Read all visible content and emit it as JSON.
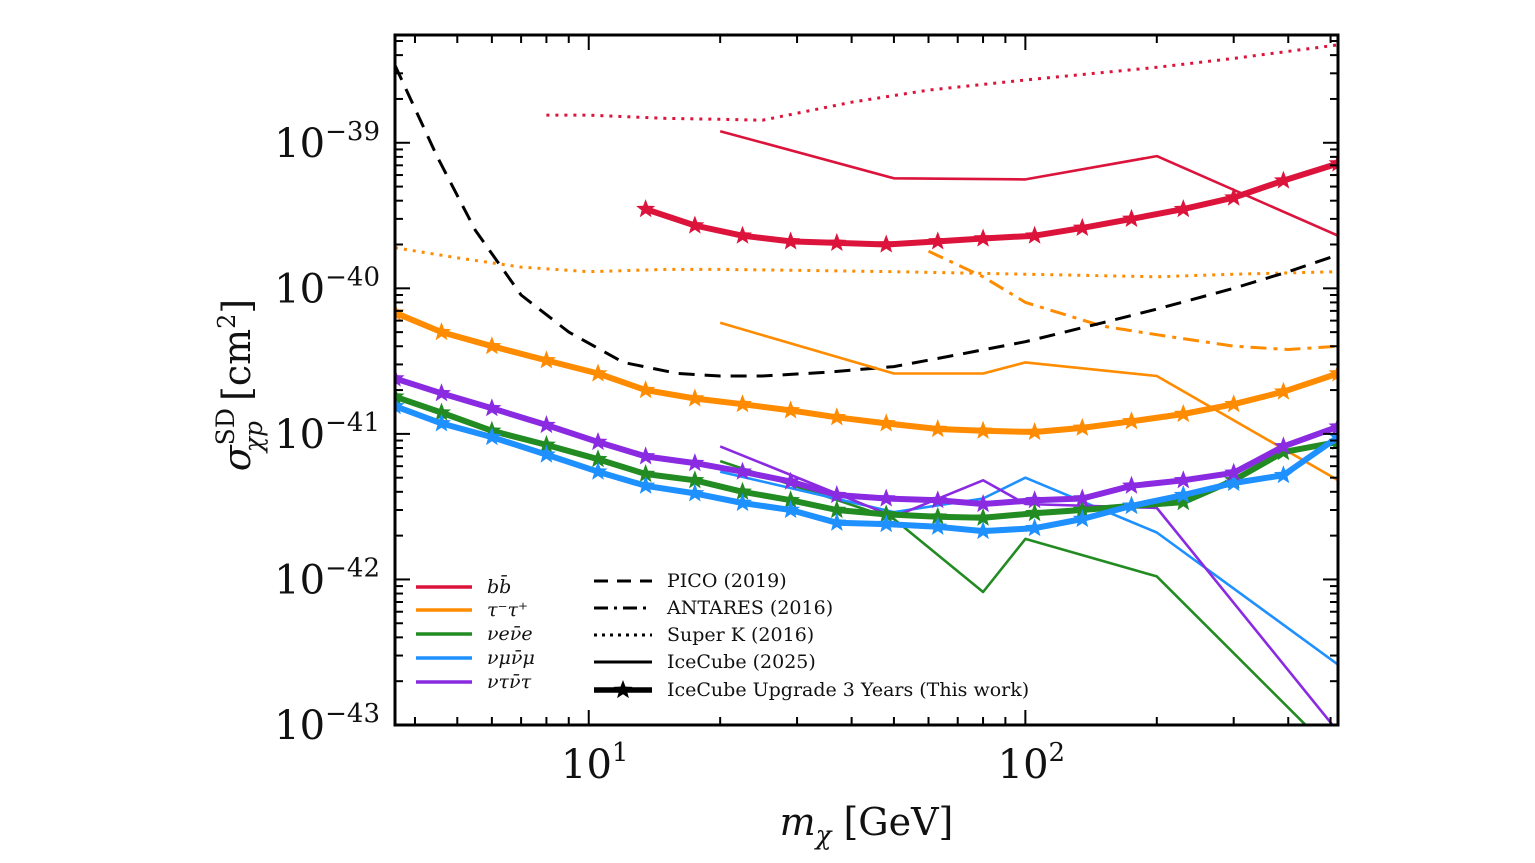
{
  "chart_data": {
    "type": "line",
    "xscale": "log",
    "yscale": "log",
    "xlim": [
      3.6,
      520
    ],
    "ylim": [
      1e-43,
      5.5e-39
    ],
    "x_ticks": [
      {
        "value": 10,
        "base": "10",
        "exp": "1"
      },
      {
        "value": 100,
        "base": "10",
        "exp": "2"
      }
    ],
    "y_ticks": [
      {
        "value": 1e-43,
        "base": "10",
        "exp": "−43"
      },
      {
        "value": 1e-42,
        "base": "10",
        "exp": "−42"
      },
      {
        "value": 1e-41,
        "base": "10",
        "exp": "−41"
      },
      {
        "value": 1e-40,
        "base": "10",
        "exp": "−40"
      },
      {
        "value": 1e-39,
        "base": "10",
        "exp": "−39"
      }
    ],
    "xlabel": {
      "sym": "m",
      "sub": "χ",
      "unit": "[GeV]"
    },
    "ylabel": {
      "sym": "σ",
      "sup": "SD",
      "sub": "χp",
      "unit": "[cm",
      "unit_sup": "2",
      "unit_close": "]"
    },
    "grid": false,
    "legend_placement": "lower-left",
    "colors": {
      "bb": "#dc143c",
      "tautau": "#ff8c00",
      "nue": "#228b22",
      "numu": "#1e90ff",
      "nutau": "#8a2be2",
      "reference": "#000000"
    },
    "channel_legend": [
      {
        "key": "bb",
        "label": "bb̄"
      },
      {
        "key": "tautau",
        "label": "τ⁻τ⁺"
      },
      {
        "key": "nue",
        "label": "νeν̄e"
      },
      {
        "key": "numu",
        "label": "νμν̄μ"
      },
      {
        "key": "nutau",
        "label": "ντν̄τ"
      }
    ],
    "style_legend": [
      {
        "style": "dashed",
        "label": "PICO (2019)"
      },
      {
        "style": "dashdot",
        "label": "ANTARES (2016)"
      },
      {
        "style": "dotted",
        "label": "Super K (2016)"
      },
      {
        "style": "solid",
        "label": "IceCube (2025)"
      },
      {
        "style": "star",
        "label": "IceCube Upgrade 3 Years (This work)"
      }
    ],
    "series": [
      {
        "channel": "bb",
        "style": "dotted",
        "x": [
          8,
          10,
          15,
          20,
          25,
          40,
          60,
          100,
          200,
          300,
          520
        ],
        "y": [
          1.55e-39,
          1.55e-39,
          1.47e-39,
          1.45e-39,
          1.43e-39,
          1.9e-39,
          2.3e-39,
          2.7e-39,
          3.3e-39,
          3.8e-39,
          4.7e-39
        ]
      },
      {
        "channel": "bb",
        "style": "solid",
        "x": [
          20,
          50,
          100,
          200,
          520
        ],
        "y": [
          1.2e-39,
          5.7e-40,
          5.6e-40,
          8.1e-40,
          2.3e-40
        ]
      },
      {
        "channel": "bb",
        "style": "star",
        "x": [
          13.5,
          17.5,
          22.5,
          29,
          37,
          48,
          63,
          80,
          105,
          135,
          175,
          230,
          300,
          390,
          520
        ],
        "y": [
          3.5e-40,
          2.7e-40,
          2.3e-40,
          2.1e-40,
          2.05e-40,
          2e-40,
          2.1e-40,
          2.2e-40,
          2.3e-40,
          2.6e-40,
          3e-40,
          3.5e-40,
          4.2e-40,
          5.5e-40,
          7.2e-40
        ]
      },
      {
        "channel": "tautau",
        "style": "dotted",
        "x": [
          3.6,
          5,
          7,
          10,
          15,
          20,
          30,
          50,
          100,
          200,
          300,
          520
        ],
        "y": [
          1.9e-40,
          1.62e-40,
          1.4e-40,
          1.3e-40,
          1.35e-40,
          1.35e-40,
          1.33e-40,
          1.3e-40,
          1.25e-40,
          1.2e-40,
          1.25e-40,
          1.3e-40
        ]
      },
      {
        "channel": "tautau",
        "style": "dashdot",
        "x": [
          60,
          80,
          100,
          150,
          200,
          300,
          400,
          520
        ],
        "y": [
          1.8e-40,
          1.2e-40,
          8e-41,
          5.5e-41,
          4.8e-41,
          4e-41,
          3.8e-41,
          4e-41
        ]
      },
      {
        "channel": "tautau",
        "style": "solid",
        "x": [
          20,
          50,
          80,
          100,
          200,
          520
        ],
        "y": [
          5.8e-41,
          2.6e-41,
          2.6e-41,
          3.1e-41,
          2.5e-41,
          4.8e-42
        ]
      },
      {
        "channel": "tautau",
        "style": "star",
        "x": [
          3.6,
          4.6,
          6,
          8,
          10.5,
          13.5,
          17.5,
          22.5,
          29,
          37,
          48,
          63,
          80,
          105,
          135,
          175,
          230,
          300,
          390,
          520
        ],
        "y": [
          6.8e-41,
          5e-41,
          4e-41,
          3.2e-41,
          2.6e-41,
          2e-41,
          1.75e-41,
          1.6e-41,
          1.45e-41,
          1.3e-41,
          1.18e-41,
          1.08e-41,
          1.05e-41,
          1.03e-41,
          1.1e-41,
          1.22e-41,
          1.37e-41,
          1.6e-41,
          1.95e-41,
          2.6e-41
        ]
      },
      {
        "channel": "nue",
        "style": "solid",
        "x": [
          20,
          50,
          80,
          100,
          200,
          520
        ],
        "y": [
          6.5e-42,
          2.6e-42,
          8.2e-43,
          1.9e-42,
          1.05e-42,
          6e-44
        ]
      },
      {
        "channel": "nue",
        "style": "star",
        "x": [
          3.6,
          4.6,
          6,
          8,
          10.5,
          13.5,
          17.5,
          22.5,
          29,
          37,
          48,
          63,
          80,
          105,
          135,
          175,
          230,
          300,
          390,
          520
        ],
        "y": [
          1.8e-41,
          1.4e-41,
          1.05e-41,
          8.4e-42,
          6.7e-42,
          5.3e-42,
          4.8e-42,
          4e-42,
          3.5e-42,
          3e-42,
          2.8e-42,
          2.7e-42,
          2.65e-42,
          2.85e-42,
          3e-42,
          3.2e-42,
          3.4e-42,
          4.8e-42,
          7.5e-42,
          8.8e-42
        ]
      },
      {
        "channel": "numu",
        "style": "solid",
        "x": [
          20,
          50,
          80,
          100,
          200,
          520
        ],
        "y": [
          5.5e-42,
          2.9e-42,
          3.6e-42,
          5e-42,
          2.1e-42,
          2.6e-43
        ]
      },
      {
        "channel": "numu",
        "style": "star",
        "x": [
          3.6,
          4.6,
          6,
          8,
          10.5,
          13.5,
          17.5,
          22.5,
          29,
          37,
          48,
          63,
          80,
          105,
          135,
          175,
          230,
          300,
          390,
          520
        ],
        "y": [
          1.55e-41,
          1.18e-41,
          9.5e-42,
          7.2e-42,
          5.5e-42,
          4.4e-42,
          3.9e-42,
          3.35e-42,
          3e-42,
          2.45e-42,
          2.4e-42,
          2.3e-42,
          2.15e-42,
          2.25e-42,
          2.6e-42,
          3.2e-42,
          3.8e-42,
          4.6e-42,
          5.2e-42,
          9.5e-42
        ]
      },
      {
        "channel": "nutau",
        "style": "solid",
        "x": [
          20,
          50,
          80,
          100,
          200,
          520
        ],
        "y": [
          8.2e-42,
          2.7e-42,
          4.8e-42,
          3.3e-42,
          3.1e-42,
          9e-44
        ]
      },
      {
        "channel": "nutau",
        "style": "star",
        "x": [
          3.6,
          4.6,
          6,
          8,
          10.5,
          13.5,
          17.5,
          22.5,
          29,
          37,
          48,
          63,
          80,
          105,
          135,
          175,
          230,
          300,
          390,
          520
        ],
        "y": [
          2.4e-41,
          1.9e-41,
          1.5e-41,
          1.15e-41,
          8.8e-42,
          7e-42,
          6.3e-42,
          5.5e-42,
          4.7e-42,
          3.8e-42,
          3.6e-42,
          3.5e-42,
          3.3e-42,
          3.5e-42,
          3.6e-42,
          4.4e-42,
          4.8e-42,
          5.4e-42,
          8.2e-42,
          1.12e-41
        ]
      },
      {
        "channel": "reference",
        "style": "dashed",
        "x": [
          3.6,
          4.5,
          5.5,
          7,
          9,
          12,
          16,
          20,
          25,
          35,
          50,
          70,
          100,
          150,
          200,
          300,
          400,
          520
        ],
        "y": [
          3.4e-39,
          8e-40,
          2.5e-40,
          9e-41,
          5e-41,
          3.1e-41,
          2.6e-41,
          2.5e-41,
          2.5e-41,
          2.65e-41,
          2.9e-41,
          3.5e-41,
          4.3e-41,
          5.8e-41,
          7.2e-41,
          1e-40,
          1.3e-40,
          1.7e-40
        ]
      }
    ]
  }
}
